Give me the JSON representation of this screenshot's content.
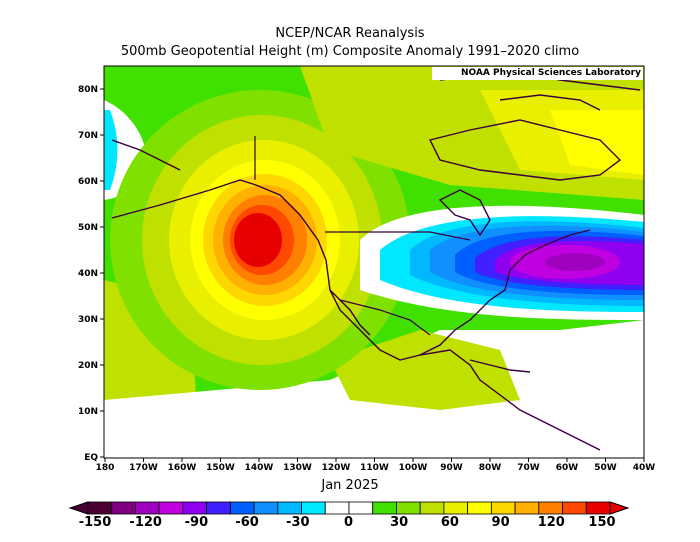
{
  "title_line1": "NCEP/NCAR Reanalysis",
  "title_line2": "500mb Geopotential Height (m) Composite Anomaly 1991–2020 climo",
  "credit": "NOAA Physical Sciences Laboratory",
  "period_label": "Jan 2025",
  "lat_ticks": [
    "80N",
    "70N",
    "60N",
    "50N",
    "40N",
    "30N",
    "20N",
    "10N",
    "EQ"
  ],
  "lon_ticks": [
    "180",
    "170W",
    "160W",
    "150W",
    "140W",
    "130W",
    "120W",
    "110W",
    "100W",
    "90W",
    "80W",
    "70W",
    "60W",
    "50W",
    "40W"
  ],
  "colorbar": {
    "labels": [
      "-150",
      "-120",
      "-90",
      "-60",
      "-30",
      "0",
      "30",
      "60",
      "90",
      "120",
      "150"
    ],
    "colors": [
      "#4b0033",
      "#800080",
      "#a000c0",
      "#c000e0",
      "#9000f0",
      "#4020ff",
      "#0060ff",
      "#1090ff",
      "#00b8ff",
      "#00e8ff",
      "#ffffff",
      "#ffffff",
      "#40e000",
      "#80e000",
      "#c0e000",
      "#e8f000",
      "#ffff00",
      "#ffd700",
      "#ffb000",
      "#ff8000",
      "#ff4800",
      "#e80000"
    ]
  },
  "colors": {
    "ridge_peak": "#e00000",
    "trough_peak": "#9000d0",
    "neutral": "#ffffff",
    "coast": "#3a0040"
  }
}
